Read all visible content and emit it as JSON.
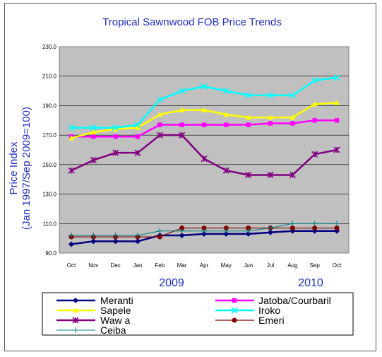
{
  "chart_data": {
    "type": "line",
    "title": "Tropical Sawnwood FOB Price Trends",
    "ylabel_line1": "Price Index",
    "ylabel_line2": "(Jan 1997/Sep 2009=100)",
    "categories": [
      "Oct",
      "Nov",
      "Dec",
      "Jan",
      "Feb",
      "Mar",
      "Apr",
      "May",
      "Jun",
      "Jul",
      "Aug",
      "Sep",
      "Oct"
    ],
    "year_labels": [
      "2009",
      "2010"
    ],
    "yticks": [
      "90.0",
      "110.0",
      "130.0",
      "150.0",
      "170.0",
      "190.0",
      "210.0",
      "230.0"
    ],
    "ylim": [
      90,
      230
    ],
    "grid": true,
    "plot_background": "#c0c0c0",
    "legend_position": "bottom",
    "series": [
      {
        "name": "Meranti",
        "color": "#000080",
        "marker": "diamond",
        "values": [
          96,
          98,
          98,
          98,
          102,
          102,
          103,
          103,
          103,
          104,
          105,
          105,
          105
        ]
      },
      {
        "name": "Jatoba/Courbaril",
        "color": "#ff00ff",
        "marker": "square",
        "values": [
          169,
          169,
          169,
          169,
          177,
          177,
          177,
          177,
          177,
          178,
          178,
          180,
          180
        ]
      },
      {
        "name": "Sapele",
        "color": "#ffff00",
        "marker": "triangle",
        "values": [
          168,
          172,
          174,
          175,
          184,
          187,
          187,
          184,
          182,
          182,
          182,
          191,
          192
        ]
      },
      {
        "name": "Iroko",
        "color": "#00ffff",
        "marker": "x",
        "values": [
          175,
          175,
          175,
          177,
          194,
          200,
          203,
          200,
          197,
          197,
          197,
          207,
          209
        ]
      },
      {
        "name": "Waw a",
        "color": "#800080",
        "marker": "star",
        "values": [
          146,
          153,
          158,
          158,
          170,
          170,
          154,
          146,
          143,
          143,
          143,
          157,
          160
        ]
      },
      {
        "name": "Emeri",
        "color": "#800000",
        "marker": "circle",
        "values": [
          101,
          101,
          101,
          101,
          101,
          107,
          107,
          107,
          107,
          107,
          107,
          107,
          107
        ]
      },
      {
        "name": "Ceiba",
        "color": "#008080",
        "marker": "plus",
        "values": [
          102,
          102,
          102,
          102,
          105,
          105,
          105,
          105,
          105,
          107,
          110,
          110,
          110
        ]
      }
    ]
  }
}
